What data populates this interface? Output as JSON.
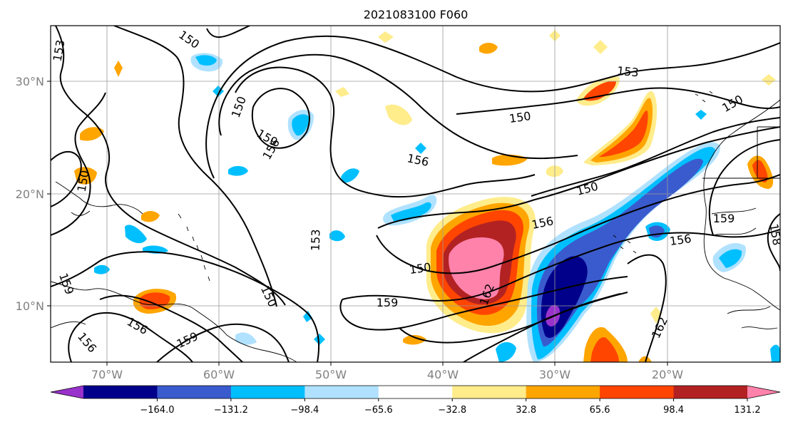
{
  "figure": {
    "title": "2021083100 F060"
  },
  "axes": {
    "lat_labels": [
      "30°N",
      "20°N",
      "10°N"
    ],
    "lon_labels": [
      "70°W",
      "60°W",
      "50°W",
      "40°W",
      "30°W",
      "20°W"
    ],
    "lat_range": [
      5,
      35
    ],
    "lon_range": [
      -75,
      -10
    ],
    "grid": true
  },
  "colorbar": {
    "tick_labels": [
      "−164.0",
      "−131.2",
      "−98.4",
      "−65.6",
      "−32.8",
      "32.8",
      "65.6",
      "98.4",
      "131.2",
      "164.0"
    ],
    "colors": [
      "#9932cc",
      "#00008b",
      "#3a5bcd",
      "#00bfff",
      "#b0e2ff",
      "#ffffff",
      "#ffec8b",
      "#ffa500",
      "#ff4500",
      "#b22222",
      "#ff82ab"
    ]
  },
  "contour_labels": [
    {
      "text": "153"
    },
    {
      "text": "150"
    },
    {
      "text": "150"
    },
    {
      "text": "159"
    },
    {
      "text": "156"
    },
    {
      "text": "150"
    },
    {
      "text": "156"
    },
    {
      "text": "153"
    },
    {
      "text": "150"
    },
    {
      "text": "150"
    },
    {
      "text": "156"
    },
    {
      "text": "150"
    },
    {
      "text": "153"
    },
    {
      "text": "150"
    },
    {
      "text": "162"
    },
    {
      "text": "159"
    },
    {
      "text": "159"
    },
    {
      "text": "156"
    },
    {
      "text": "162"
    },
    {
      "text": "159"
    },
    {
      "text": "156"
    },
    {
      "text": "159"
    },
    {
      "text": "156"
    },
    {
      "text": "158"
    },
    {
      "text": "150"
    }
  ]
}
